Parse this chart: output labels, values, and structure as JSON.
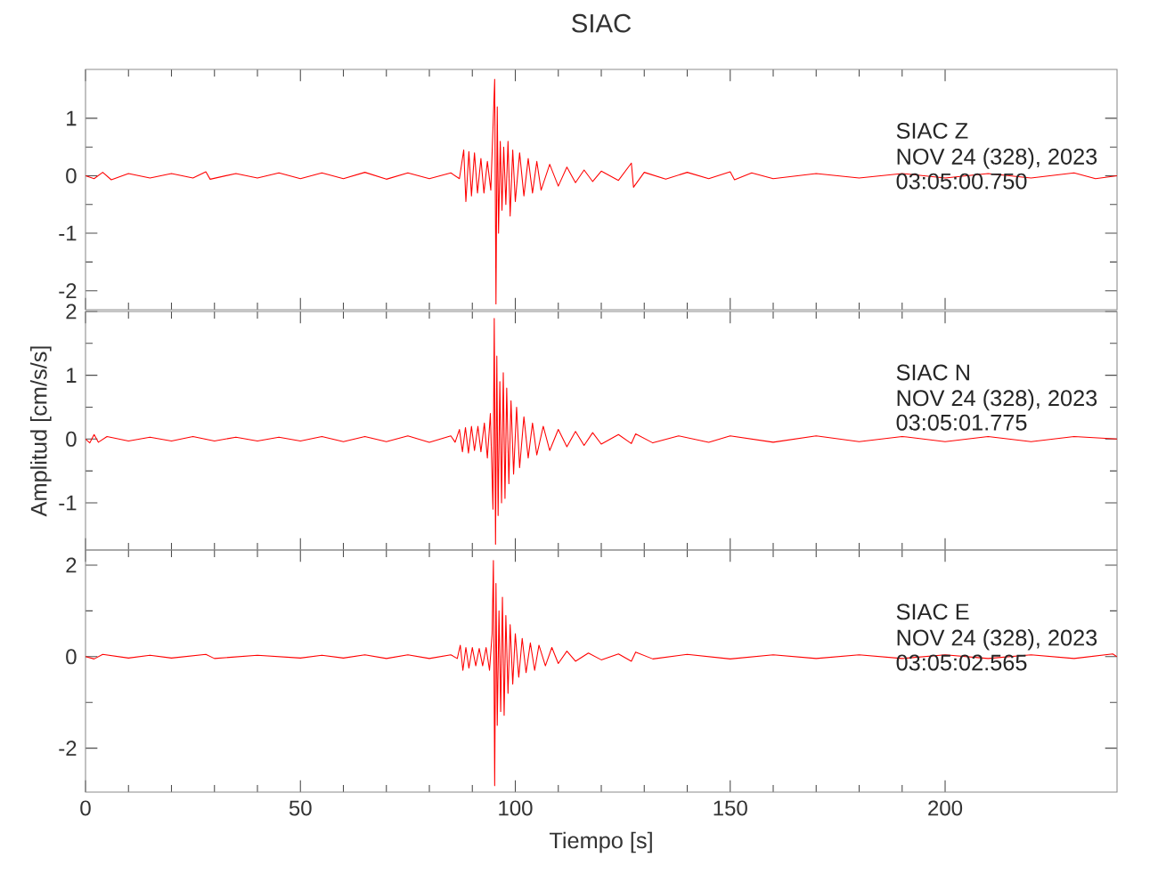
{
  "chart_data": [
    {
      "type": "line",
      "title": "SIAC",
      "color": "#ff0000",
      "tick_labels": "y",
      "xlim": [
        0,
        240
      ],
      "xticks": [
        0,
        50,
        100,
        150,
        200
      ],
      "ylim": [
        -2.33,
        1.85
      ],
      "yticks": [
        -2,
        -1,
        0,
        1
      ],
      "annotations": [
        "SIAC Z",
        "NOV 24 (328), 2023",
        "03:05:00.750"
      ],
      "x": [
        0,
        2,
        4,
        6,
        10,
        15,
        20,
        25,
        28,
        29,
        35,
        40,
        45,
        50,
        55,
        60,
        65,
        70,
        75,
        80,
        85,
        87,
        88,
        88.5,
        89.2,
        89.8,
        90.5,
        91.2,
        92,
        92.7,
        93.5,
        94.3,
        95.2,
        95.5,
        95.8,
        96.1,
        96.5,
        96.9,
        97.3,
        97.8,
        98.3,
        98.8,
        99.4,
        100,
        101,
        102,
        103,
        104,
        105,
        106,
        108,
        110,
        112,
        114,
        116,
        118,
        120,
        124,
        127,
        127.5,
        130,
        135,
        140,
        145,
        150,
        151,
        155,
        160,
        170,
        180,
        190,
        200,
        210,
        220,
        230,
        235,
        240
      ],
      "values": [
        0,
        -0.05,
        0.06,
        -0.07,
        0.04,
        -0.04,
        0.04,
        -0.04,
        0.07,
        -0.06,
        0.04,
        -0.04,
        0.05,
        -0.05,
        0.05,
        -0.05,
        0.06,
        -0.06,
        0.05,
        -0.05,
        0.05,
        -0.05,
        0.45,
        -0.45,
        0.42,
        -0.35,
        0.4,
        -0.3,
        0.3,
        -0.3,
        0.25,
        -0.25,
        1.68,
        -2.23,
        1.2,
        -1.0,
        0.6,
        -0.6,
        0.5,
        -0.5,
        0.6,
        -0.7,
        0.45,
        -0.45,
        0.4,
        -0.35,
        0.3,
        -0.3,
        0.25,
        -0.25,
        0.2,
        -0.18,
        0.15,
        -0.12,
        0.1,
        -0.1,
        0.08,
        -0.08,
        0.22,
        -0.2,
        0.06,
        -0.06,
        0.06,
        -0.05,
        0.07,
        -0.07,
        0.05,
        -0.05,
        0.04,
        -0.04,
        0.04,
        -0.04,
        0.04,
        -0.04,
        0.05,
        -0.05,
        0
      ]
    },
    {
      "type": "line",
      "ylabel": "Amplitud [cm/s/s]",
      "color": "#ff0000",
      "tick_labels": "y",
      "xlim": [
        0,
        240
      ],
      "xticks": [
        0,
        50,
        100,
        150,
        200
      ],
      "ylim": [
        -1.74,
        2
      ],
      "yticks": [
        -1,
        0,
        1,
        2
      ],
      "annotations": [
        "SIAC N",
        "NOV 24 (328), 2023",
        "03:05:01.775"
      ],
      "x": [
        0,
        1,
        2,
        3,
        5,
        10,
        15,
        20,
        25,
        30,
        35,
        40,
        45,
        50,
        55,
        60,
        65,
        70,
        75,
        80,
        85,
        86,
        87,
        87.7,
        88.4,
        89.1,
        89.8,
        90.5,
        91.3,
        92,
        92.8,
        93.5,
        94.2,
        94.8,
        95.1,
        95.4,
        95.7,
        96,
        96.4,
        96.8,
        97.2,
        97.6,
        98,
        98.5,
        99,
        99.6,
        100.3,
        101,
        102,
        103,
        104,
        105,
        106.5,
        108,
        110,
        112,
        114,
        116,
        118,
        120,
        124,
        127,
        128,
        132,
        138,
        145,
        150,
        160,
        170,
        180,
        190,
        200,
        210,
        220,
        230,
        240
      ],
      "values": [
        0,
        -0.06,
        0.07,
        -0.05,
        0.04,
        -0.03,
        0.03,
        -0.03,
        0.04,
        -0.03,
        0.03,
        -0.03,
        0.03,
        -0.03,
        0.04,
        -0.04,
        0.04,
        -0.04,
        0.05,
        -0.05,
        0.05,
        -0.05,
        0.15,
        -0.2,
        0.18,
        -0.22,
        0.2,
        -0.18,
        0.2,
        -0.2,
        0.25,
        -0.3,
        0.4,
        -1.1,
        1.89,
        -1.65,
        1.3,
        -1.2,
        0.9,
        -1.0,
        1.04,
        -0.93,
        0.8,
        -0.7,
        0.6,
        -0.55,
        0.5,
        -0.45,
        0.35,
        -0.3,
        0.25,
        -0.25,
        0.2,
        -0.18,
        0.15,
        -0.12,
        0.12,
        -0.1,
        0.1,
        -0.08,
        0.07,
        -0.07,
        0.08,
        -0.06,
        0.05,
        -0.05,
        0.05,
        -0.05,
        0.05,
        -0.04,
        0.04,
        -0.04,
        0.04,
        -0.04,
        0.04,
        0
      ]
    },
    {
      "type": "line",
      "xlabel": "Tiempo [s]",
      "color": "#ff0000",
      "xlim": [
        0,
        240
      ],
      "xticks": [
        0,
        50,
        100,
        150,
        200
      ],
      "ylim": [
        -2.96,
        2.33
      ],
      "yticks": [
        -2,
        0,
        2
      ],
      "annotations": [
        "SIAC E",
        "NOV 24 (328), 2023",
        "03:05:02.565"
      ],
      "x": [
        0,
        2,
        4,
        10,
        15,
        20,
        28,
        30,
        40,
        50,
        55,
        60,
        65,
        70,
        75,
        80,
        85,
        86.5,
        87.2,
        87.8,
        88.5,
        89.2,
        90,
        90.8,
        91.6,
        92.4,
        93.2,
        94,
        94.6,
        94.9,
        95.2,
        95.5,
        95.8,
        96.2,
        96.6,
        97,
        97.4,
        97.8,
        98.3,
        98.8,
        99.4,
        100,
        100.8,
        101.6,
        102.5,
        103.5,
        104.5,
        105.5,
        107,
        108.5,
        110,
        112,
        114,
        117,
        120,
        124,
        127,
        128,
        132,
        140,
        150,
        160,
        170,
        180,
        190,
        200,
        210,
        220,
        230,
        239,
        240
      ],
      "values": [
        0,
        -0.05,
        0.05,
        -0.03,
        0.03,
        -0.03,
        0.05,
        -0.04,
        0.03,
        -0.03,
        0.03,
        -0.03,
        0.04,
        -0.04,
        0.04,
        -0.04,
        0.04,
        -0.04,
        0.25,
        -0.3,
        0.2,
        -0.25,
        0.2,
        -0.2,
        0.18,
        -0.2,
        0.2,
        -0.3,
        0.5,
        2.1,
        -2.82,
        1.6,
        -1.5,
        1.0,
        -1.2,
        1.3,
        -1.28,
        0.9,
        -0.8,
        0.7,
        -0.6,
        0.5,
        -0.45,
        0.4,
        -0.35,
        0.3,
        -0.3,
        0.25,
        -0.2,
        0.2,
        -0.15,
        0.12,
        -0.1,
        0.08,
        -0.07,
        0.06,
        -0.1,
        0.1,
        -0.05,
        0.05,
        -0.05,
        0.04,
        -0.04,
        0.04,
        -0.04,
        0.04,
        -0.04,
        0.04,
        -0.04,
        0.06,
        0
      ]
    }
  ]
}
